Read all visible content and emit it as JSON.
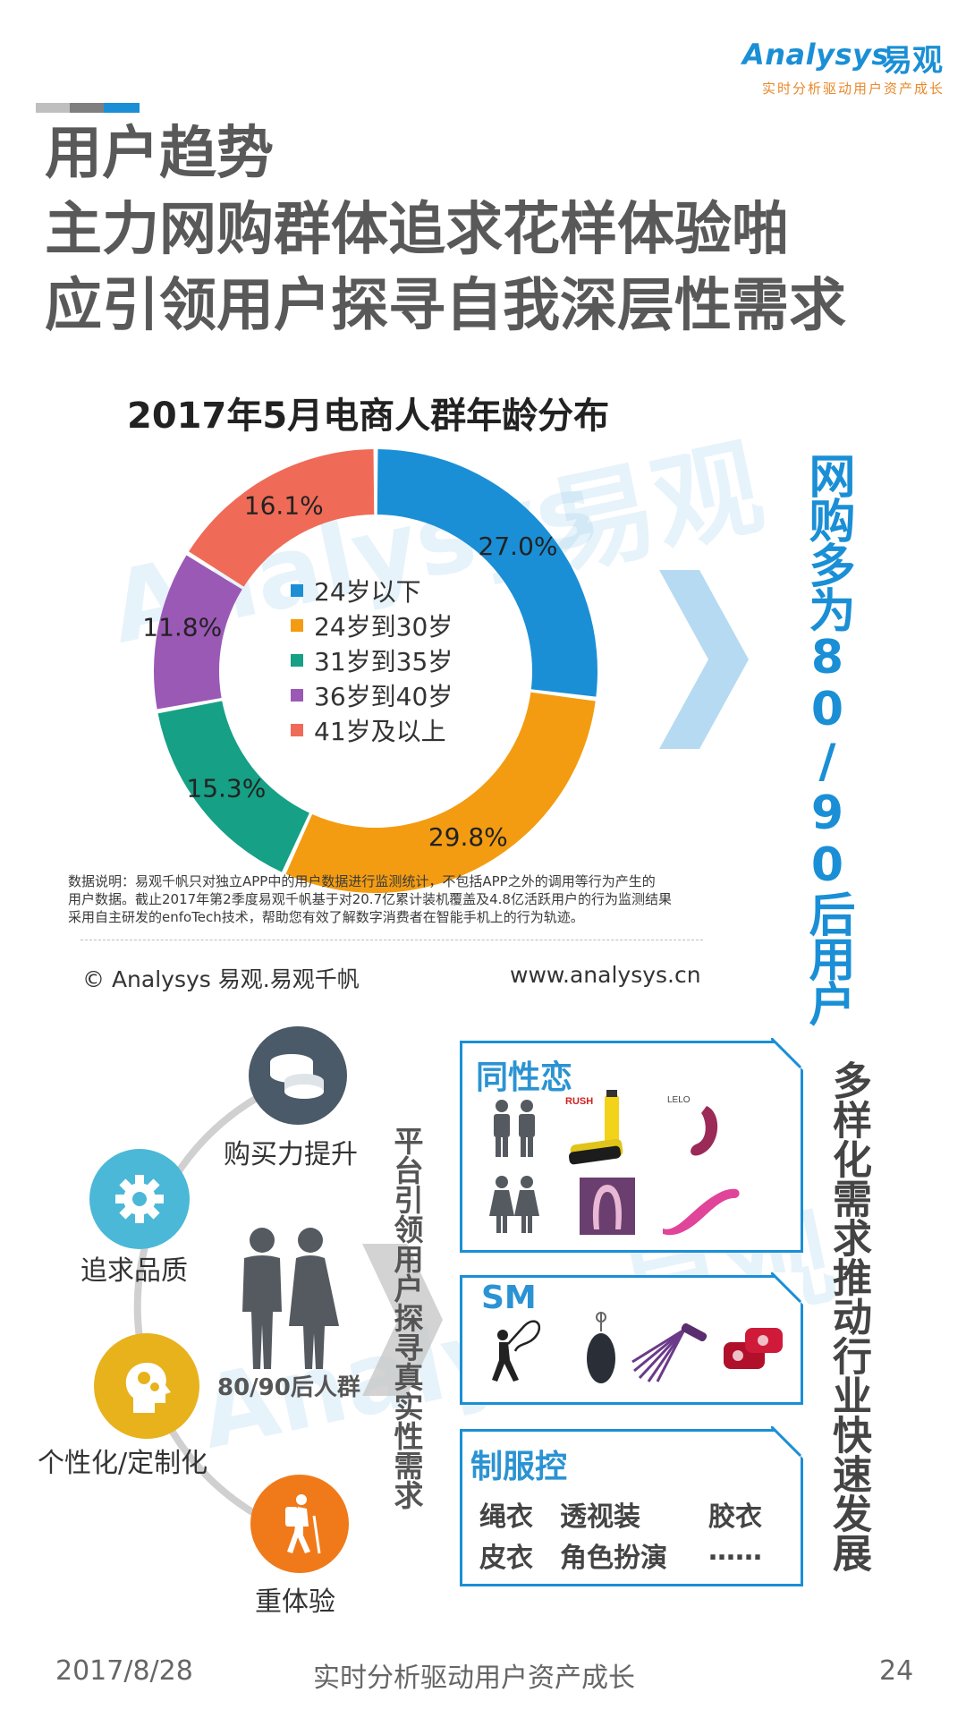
{
  "header": {
    "logo_word": "Analysys",
    "logo_cn": "易观",
    "tagline": "实时分析驱动用户资产成长",
    "title_lines": [
      "用户趋势",
      "主力网购群体追求花样体验啪",
      "应引领用户探寻自我深层性需求"
    ]
  },
  "chart_data": {
    "type": "pie",
    "title": "2017年5月电商人群年龄分布",
    "categories": [
      "24岁以下",
      "24岁到30岁",
      "31岁到35岁",
      "36岁到40岁",
      "41岁及以上"
    ],
    "values": [
      27.0,
      29.8,
      15.3,
      11.8,
      16.1
    ],
    "value_labels": [
      "27.0%",
      "29.8%",
      "15.3%",
      "11.8%",
      "16.1%"
    ],
    "colors": [
      "#1a8fd6",
      "#f39c12",
      "#16a085",
      "#9b59b6",
      "#ef6b57"
    ],
    "legend_position": "center"
  },
  "side_label": "网购多为80/90后用户",
  "note": {
    "lines": [
      "数据说明：易观千帆只对独立APP中的用户数据进行监测统计，不包括APP之外的调用等行为产生的",
      "用户数据。截止2017年第2季度易观千帆基于对20.7亿累计装机覆盖及4.8亿活跃用户的行为监测结果",
      "采用自主研发的enfoTech技术，帮助您有效了解数字消费者在智能手机上的行为轨迹。"
    ],
    "copyright": "© Analysys 易观.易观千帆",
    "website": "www.analysys.cn"
  },
  "drivers": {
    "items": [
      {
        "label": "购买力提升",
        "icon": "coins-icon",
        "color": "#4a5a68"
      },
      {
        "label": "追求品质",
        "icon": "gear-icon",
        "color": "#4bb8d8"
      },
      {
        "label": "个性化/定制化",
        "icon": "head-gears-icon",
        "color": "#e7b21c"
      },
      {
        "label": "重体验",
        "icon": "hiker-icon",
        "color": "#f07a1a"
      }
    ],
    "center_label": "80/90后人群",
    "center_icon": "couple-icon"
  },
  "platform_label": "平台引领用户探寻真实性需求",
  "categories": {
    "gay": {
      "title": "同性恋",
      "icons": [
        "male-couple-icon",
        "female-couple-icon",
        "lighter-product-icon",
        "toy-product-icon",
        "double-toy-icon",
        "curved-toy-icon"
      ],
      "brand_marks": [
        "RUSH",
        "LELO"
      ]
    },
    "sm": {
      "title": "SM",
      "icons": [
        "whip-figure-icon",
        "egg-vibrator-icon",
        "flogger-icon",
        "restraint-icon"
      ]
    },
    "uniform": {
      "title": "制服控",
      "items": [
        "绳衣",
        "透视装",
        "胶衣",
        "皮衣",
        "角色扮演",
        "……"
      ]
    }
  },
  "industry_label": "多样化需求推动行业快速发展",
  "footer": {
    "date": "2017/8/28",
    "slogan": "实时分析驱动用户资产成长",
    "page": "24"
  }
}
